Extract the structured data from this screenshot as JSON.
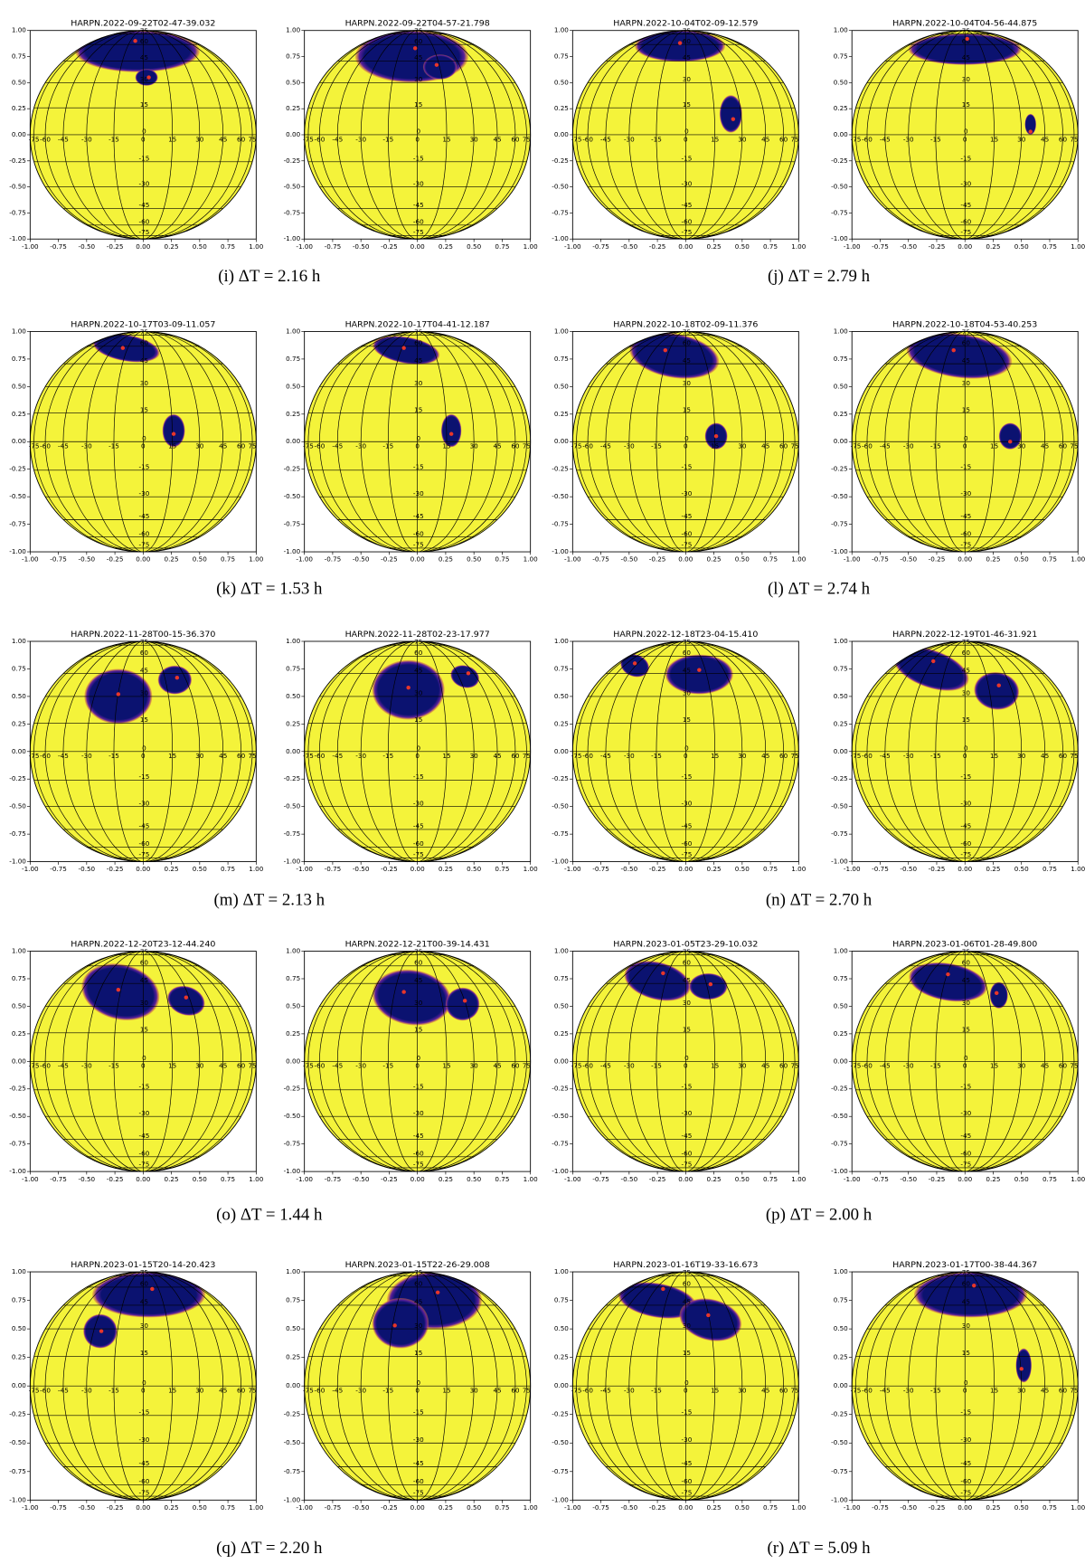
{
  "figure": {
    "xticks": [
      {
        "value": -1,
        "label": "-1.00"
      },
      {
        "value": -0.75,
        "label": "-0.75"
      },
      {
        "value": -0.5,
        "label": "-0.50"
      },
      {
        "value": -0.25,
        "label": "-0.25"
      },
      {
        "value": 0,
        "label": "0.00"
      },
      {
        "value": 0.25,
        "label": "0.25"
      },
      {
        "value": 0.5,
        "label": "0.50"
      },
      {
        "value": 0.75,
        "label": "0.75"
      },
      {
        "value": 1,
        "label": "1.00"
      }
    ],
    "yticks": [
      {
        "value": -1,
        "label": "-1.00"
      },
      {
        "value": -0.75,
        "label": "-0.75"
      },
      {
        "value": -0.5,
        "label": "-0.50"
      },
      {
        "value": -0.25,
        "label": "-0.25"
      },
      {
        "value": 0,
        "label": "0.00"
      },
      {
        "value": 0.25,
        "label": "0.25"
      },
      {
        "value": 0.5,
        "label": "0.50"
      },
      {
        "value": 0.75,
        "label": "0.75"
      },
      {
        "value": 1,
        "label": "1.00"
      }
    ],
    "longitude_labels": [
      -75,
      -60,
      -45,
      -30,
      -15,
      0,
      15,
      30,
      45,
      60,
      75
    ],
    "latitude_labels": [
      75,
      60,
      45,
      30,
      15,
      0,
      -15,
      -30,
      -45,
      -60,
      -75
    ],
    "panels": [
      {
        "title": "HARPN.2022-09-22T02-47-39.032",
        "spots": [
          {
            "x": -0.05,
            "y": 0.8,
            "rx": 0.55,
            "ry": 0.2,
            "angle": 0
          },
          {
            "x": 0.03,
            "y": 0.55,
            "rx": 0.1,
            "ry": 0.08,
            "angle": 0
          }
        ],
        "markers": {
          "x": [
            -0.07,
            0.05
          ],
          "y": [
            0.9,
            0.55
          ]
        }
      },
      {
        "title": "HARPN.2022-09-22T04-57-21.798",
        "spots": [
          {
            "x": -0.05,
            "y": 0.75,
            "rx": 0.5,
            "ry": 0.25,
            "angle": 0
          },
          {
            "x": 0.2,
            "y": 0.65,
            "rx": 0.15,
            "ry": 0.12,
            "angle": 0
          }
        ],
        "markers": {
          "x": [
            -0.02,
            0.17
          ],
          "y": [
            0.83,
            0.67
          ]
        }
      },
      {
        "title": "HARPN.2022-10-04T02-09-12.579",
        "spots": [
          {
            "x": -0.05,
            "y": 0.85,
            "rx": 0.4,
            "ry": 0.15,
            "angle": 0
          },
          {
            "x": 0.4,
            "y": 0.2,
            "rx": 0.1,
            "ry": 0.18,
            "angle": 0
          }
        ],
        "markers": {
          "x": [
            -0.05,
            0.42
          ],
          "y": [
            0.88,
            0.15
          ]
        }
      },
      {
        "title": "HARPN.2022-10-04T04-56-44.875",
        "spots": [
          {
            "x": 0.0,
            "y": 0.82,
            "rx": 0.5,
            "ry": 0.15,
            "angle": 0
          },
          {
            "x": 0.58,
            "y": 0.1,
            "rx": 0.05,
            "ry": 0.1,
            "angle": 0
          }
        ],
        "markers": {
          "x": [
            0.02,
            0.58
          ],
          "y": [
            0.92,
            0.03
          ]
        }
      },
      {
        "title": "HARPN.2022-10-17T03-09-11.057",
        "spots": [
          {
            "x": -0.15,
            "y": 0.85,
            "rx": 0.3,
            "ry": 0.12,
            "angle": -10
          },
          {
            "x": 0.27,
            "y": 0.1,
            "rx": 0.1,
            "ry": 0.15,
            "angle": 0
          }
        ],
        "markers": {
          "x": [
            -0.18,
            0.27
          ],
          "y": [
            0.85,
            0.07
          ]
        }
      },
      {
        "title": "HARPN.2022-10-17T04-41-12.187",
        "spots": [
          {
            "x": -0.1,
            "y": 0.83,
            "rx": 0.3,
            "ry": 0.12,
            "angle": -10
          },
          {
            "x": 0.3,
            "y": 0.1,
            "rx": 0.09,
            "ry": 0.15,
            "angle": 0
          }
        ],
        "markers": {
          "x": [
            -0.12,
            0.3
          ],
          "y": [
            0.85,
            0.07
          ]
        }
      },
      {
        "title": "HARPN.2022-10-18T02-09-11.376",
        "spots": [
          {
            "x": -0.1,
            "y": 0.78,
            "rx": 0.4,
            "ry": 0.2,
            "angle": -10
          },
          {
            "x": 0.27,
            "y": 0.05,
            "rx": 0.1,
            "ry": 0.12,
            "angle": 0
          }
        ],
        "markers": {
          "x": [
            -0.18,
            0.27
          ],
          "y": [
            0.83,
            0.05
          ]
        }
      },
      {
        "title": "HARPN.2022-10-18T04-53-40.253",
        "spots": [
          {
            "x": -0.05,
            "y": 0.78,
            "rx": 0.47,
            "ry": 0.2,
            "angle": -8
          },
          {
            "x": 0.4,
            "y": 0.05,
            "rx": 0.1,
            "ry": 0.12,
            "angle": 0
          }
        ],
        "markers": {
          "x": [
            -0.1,
            0.4
          ],
          "y": [
            0.83,
            0.0
          ]
        }
      },
      {
        "title": "HARPN.2022-11-28T00-15-36.370",
        "spots": [
          {
            "x": -0.22,
            "y": 0.5,
            "rx": 0.3,
            "ry": 0.25,
            "angle": 0
          },
          {
            "x": 0.28,
            "y": 0.65,
            "rx": 0.15,
            "ry": 0.13,
            "angle": 0
          }
        ],
        "markers": {
          "x": [
            -0.22,
            0.3
          ],
          "y": [
            0.52,
            0.67
          ]
        }
      },
      {
        "title": "HARPN.2022-11-28T02-23-17.977",
        "spots": [
          {
            "x": -0.08,
            "y": 0.56,
            "rx": 0.32,
            "ry": 0.27,
            "angle": 0
          },
          {
            "x": 0.42,
            "y": 0.68,
            "rx": 0.13,
            "ry": 0.1,
            "angle": -20
          }
        ],
        "markers": {
          "x": [
            -0.08,
            0.45
          ],
          "y": [
            0.58,
            0.71
          ]
        }
      },
      {
        "title": "HARPN.2022-12-18T23-04-15.410",
        "spots": [
          {
            "x": -0.45,
            "y": 0.78,
            "rx": 0.13,
            "ry": 0.1,
            "angle": -20
          },
          {
            "x": 0.12,
            "y": 0.7,
            "rx": 0.3,
            "ry": 0.18,
            "angle": 0
          }
        ],
        "markers": {
          "x": [
            -0.45,
            0.12
          ],
          "y": [
            0.8,
            0.74
          ]
        }
      },
      {
        "title": "HARPN.2022-12-19T01-46-31.921",
        "spots": [
          {
            "x": -0.3,
            "y": 0.75,
            "rx": 0.35,
            "ry": 0.17,
            "angle": -20
          },
          {
            "x": 0.28,
            "y": 0.55,
            "rx": 0.2,
            "ry": 0.17,
            "angle": -10
          }
        ],
        "markers": {
          "x": [
            -0.28,
            0.3
          ],
          "y": [
            0.82,
            0.6
          ]
        }
      },
      {
        "title": "HARPN.2022-12-20T23-12-44.240",
        "spots": [
          {
            "x": -0.2,
            "y": 0.63,
            "rx": 0.35,
            "ry": 0.25,
            "angle": -15
          },
          {
            "x": 0.38,
            "y": 0.55,
            "rx": 0.17,
            "ry": 0.13,
            "angle": -20
          }
        ],
        "markers": {
          "x": [
            -0.22,
            0.38
          ],
          "y": [
            0.65,
            0.58
          ]
        }
      },
      {
        "title": "HARPN.2022-12-21T00-39-14.431",
        "spots": [
          {
            "x": -0.05,
            "y": 0.58,
            "rx": 0.35,
            "ry": 0.25,
            "angle": -10
          },
          {
            "x": 0.4,
            "y": 0.52,
            "rx": 0.15,
            "ry": 0.15,
            "angle": 0
          }
        ],
        "markers": {
          "x": [
            -0.12,
            0.42
          ],
          "y": [
            0.63,
            0.55
          ]
        }
      },
      {
        "title": "HARPN.2023-01-05T23-29-10.032",
        "spots": [
          {
            "x": -0.25,
            "y": 0.73,
            "rx": 0.3,
            "ry": 0.17,
            "angle": -15
          },
          {
            "x": 0.2,
            "y": 0.68,
            "rx": 0.17,
            "ry": 0.12,
            "angle": 0
          }
        ],
        "markers": {
          "x": [
            -0.2,
            0.22
          ],
          "y": [
            0.8,
            0.7
          ]
        }
      },
      {
        "title": "HARPN.2023-01-06T01-28-49.800",
        "spots": [
          {
            "x": -0.15,
            "y": 0.72,
            "rx": 0.35,
            "ry": 0.17,
            "angle": -10
          },
          {
            "x": 0.3,
            "y": 0.6,
            "rx": 0.08,
            "ry": 0.12,
            "angle": 0
          }
        ],
        "markers": {
          "x": [
            -0.15,
            0.28
          ],
          "y": [
            0.79,
            0.62
          ]
        }
      },
      {
        "title": "HARPN.2023-01-15T20-14-20.423",
        "spots": [
          {
            "x": 0.05,
            "y": 0.8,
            "rx": 0.5,
            "ry": 0.2,
            "angle": 0
          },
          {
            "x": -0.38,
            "y": 0.48,
            "rx": 0.15,
            "ry": 0.15,
            "angle": 0
          }
        ],
        "markers": {
          "x": [
            0.08,
            -0.37
          ],
          "y": [
            0.85,
            0.48
          ]
        }
      },
      {
        "title": "HARPN.2023-01-15T22-26-29.008",
        "spots": [
          {
            "x": 0.15,
            "y": 0.75,
            "rx": 0.42,
            "ry": 0.25,
            "angle": 0
          },
          {
            "x": -0.15,
            "y": 0.55,
            "rx": 0.25,
            "ry": 0.22,
            "angle": 0
          }
        ],
        "markers": {
          "x": [
            0.18,
            -0.2
          ],
          "y": [
            0.82,
            0.53
          ]
        }
      },
      {
        "title": "HARPN.2023-01-16T19-33-16.673",
        "spots": [
          {
            "x": -0.25,
            "y": 0.75,
            "rx": 0.35,
            "ry": 0.15,
            "angle": -10
          },
          {
            "x": 0.22,
            "y": 0.58,
            "rx": 0.28,
            "ry": 0.18,
            "angle": -15
          }
        ],
        "markers": {
          "x": [
            -0.2,
            0.2
          ],
          "y": [
            0.85,
            0.62
          ]
        }
      },
      {
        "title": "HARPN.2023-01-17T00-38-44.367",
        "spots": [
          {
            "x": 0.05,
            "y": 0.8,
            "rx": 0.5,
            "ry": 0.2,
            "angle": 0
          },
          {
            "x": 0.52,
            "y": 0.18,
            "rx": 0.07,
            "ry": 0.15,
            "angle": 0
          }
        ],
        "markers": {
          "x": [
            0.08,
            0.5
          ],
          "y": [
            0.88,
            0.15
          ]
        }
      }
    ],
    "captions": [
      "(i) ΔT = 2.16 h",
      "(j) ΔT = 2.79 h",
      "(k) ΔT = 1.53 h",
      "(l) ΔT = 2.74 h",
      "(m) ΔT = 2.13 h",
      "(n) ΔT = 2.70 h",
      "(o) ΔT = 1.44 h",
      "(p) ΔT = 2.00 h",
      "(q) ΔT = 2.20 h",
      "(r) ΔT = 5.09 h"
    ]
  }
}
